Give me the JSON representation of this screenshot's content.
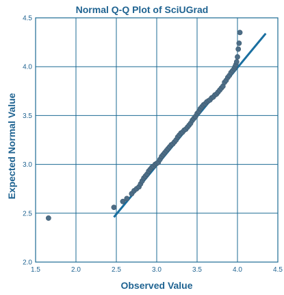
{
  "chart_data": {
    "type": "scatter",
    "title": "Normal Q-Q Plot of SciUGrad",
    "xlabel": "Observed Value",
    "ylabel": "Expected Normal Value",
    "xlim": [
      1.5,
      4.5
    ],
    "ylim": [
      2.0,
      4.5
    ],
    "xticks": [
      "1.5",
      "2.0",
      "2.5",
      "3.0",
      "3.5",
      "4.0",
      "4.5"
    ],
    "yticks": [
      "2.0",
      "2.5",
      "3.0",
      "3.5",
      "4.0",
      "4.5"
    ],
    "grid": true,
    "reference_line": {
      "x": [
        2.47,
        4.35
      ],
      "y": [
        2.46,
        4.34
      ]
    },
    "points": {
      "x": [
        1.66,
        2.47,
        2.58,
        2.63,
        2.69,
        2.72,
        2.75,
        2.78,
        2.8,
        2.82,
        2.84,
        2.86,
        2.88,
        2.9,
        2.92,
        2.94,
        2.96,
        2.98,
        3.0,
        3.02,
        3.04,
        3.06,
        3.08,
        3.1,
        3.12,
        3.14,
        3.16,
        3.18,
        3.2,
        3.22,
        3.24,
        3.26,
        3.28,
        3.3,
        3.32,
        3.34,
        3.36,
        3.38,
        3.4,
        3.42,
        3.44,
        3.46,
        3.48,
        3.5,
        3.52,
        3.54,
        3.56,
        3.58,
        3.6,
        3.62,
        3.64,
        3.66,
        3.68,
        3.7,
        3.72,
        3.74,
        3.76,
        3.78,
        3.8,
        3.82,
        3.84,
        3.86,
        3.88,
        3.9,
        3.92,
        3.94,
        3.96,
        3.97,
        3.98,
        3.99,
        4.0,
        4.01,
        4.02,
        4.03
      ],
      "y": [
        2.45,
        2.56,
        2.62,
        2.65,
        2.7,
        2.73,
        2.75,
        2.77,
        2.8,
        2.83,
        2.86,
        2.88,
        2.9,
        2.93,
        2.95,
        2.97,
        2.98,
        3.0,
        3.01,
        3.02,
        3.05,
        3.08,
        3.1,
        3.12,
        3.14,
        3.16,
        3.18,
        3.2,
        3.21,
        3.23,
        3.25,
        3.28,
        3.3,
        3.32,
        3.33,
        3.35,
        3.36,
        3.38,
        3.4,
        3.42,
        3.45,
        3.47,
        3.49,
        3.52,
        3.54,
        3.57,
        3.59,
        3.61,
        3.62,
        3.64,
        3.65,
        3.66,
        3.68,
        3.69,
        3.71,
        3.72,
        3.74,
        3.76,
        3.78,
        3.8,
        3.84,
        3.86,
        3.89,
        3.91,
        3.94,
        3.96,
        3.98,
        4.0,
        4.02,
        4.05,
        4.1,
        4.18,
        4.24,
        4.35
      ]
    },
    "colors": {
      "axis_text": "#1f6391",
      "grid": "#1b6a93",
      "points": "#4d6d86",
      "line": "#1a6fa0"
    }
  }
}
